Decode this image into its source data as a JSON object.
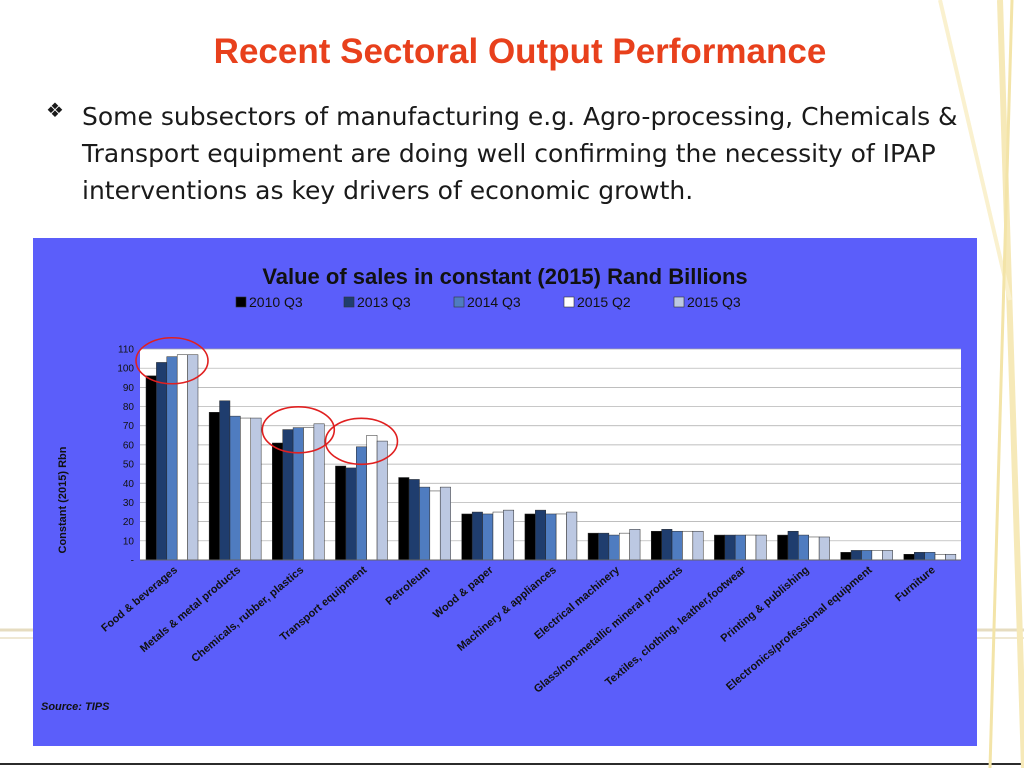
{
  "slide": {
    "title": "Recent Sectoral Output Performance",
    "bullet_icon": "diamond-bullet-icon",
    "bullet_text": "Some subsectors of manufacturing e.g.  Agro-processing, Chemicals & Transport equipment are doing well confirming the necessity of IPAP interventions as key drivers of economic growth.",
    "source": "Source: TIPS",
    "colors": {
      "title": "#e8401c",
      "chart_panel": "#5b5efa",
      "highlight_circle": "#e02020"
    }
  },
  "chart_data": {
    "type": "bar",
    "title": "Value of sales in constant (2015) Rand Billions",
    "ylabel": "Constant (2015) Rbn",
    "xlabel": "",
    "ylim": [
      0,
      110
    ],
    "yticks": [
      0,
      10,
      20,
      30,
      40,
      50,
      60,
      70,
      80,
      90,
      100,
      110
    ],
    "ytick_labels": [
      "-",
      "10",
      "20",
      "30",
      "40",
      "50",
      "60",
      "70",
      "80",
      "90",
      "100",
      "110"
    ],
    "grid": true,
    "legend": "top-center",
    "categories": [
      "Food & beverages",
      "Metals & metal products",
      "Chemicals, rubber, plastics",
      "Transport equipment",
      "Petroleum",
      "Wood & paper",
      "Machinery & appliances",
      "Electrical machinery",
      "Glass/non-metallic mineral products",
      "Textiles, clothing, leather,footwear",
      "Printing & publishing",
      "Electronics/professional equipment",
      "Furniture"
    ],
    "series": [
      {
        "name": "2010 Q3",
        "color": "#000000",
        "values": [
          96,
          77,
          61,
          49,
          43,
          24,
          24,
          14,
          15,
          13,
          13,
          4,
          3
        ]
      },
      {
        "name": "2013 Q3",
        "color": "#1f3d6e",
        "values": [
          103,
          83,
          68,
          48,
          42,
          25,
          26,
          14,
          16,
          13,
          15,
          5,
          4
        ]
      },
      {
        "name": "2014 Q3",
        "color": "#4f7cc0",
        "values": [
          106,
          75,
          69,
          59,
          38,
          24,
          24,
          13,
          15,
          13,
          13,
          5,
          4
        ]
      },
      {
        "name": "2015 Q2",
        "color": "#ffffff",
        "values": [
          107,
          74,
          69,
          65,
          36,
          25,
          24,
          14,
          15,
          13,
          12,
          5,
          3
        ]
      },
      {
        "name": "2015 Q3",
        "color": "#bcc8e2",
        "values": [
          107,
          74,
          71,
          62,
          38,
          26,
          25,
          16,
          15,
          13,
          12,
          5,
          3
        ]
      }
    ],
    "highlighted_categories": [
      "Food & beverages",
      "Chemicals, rubber, plastics",
      "Transport equipment"
    ]
  }
}
